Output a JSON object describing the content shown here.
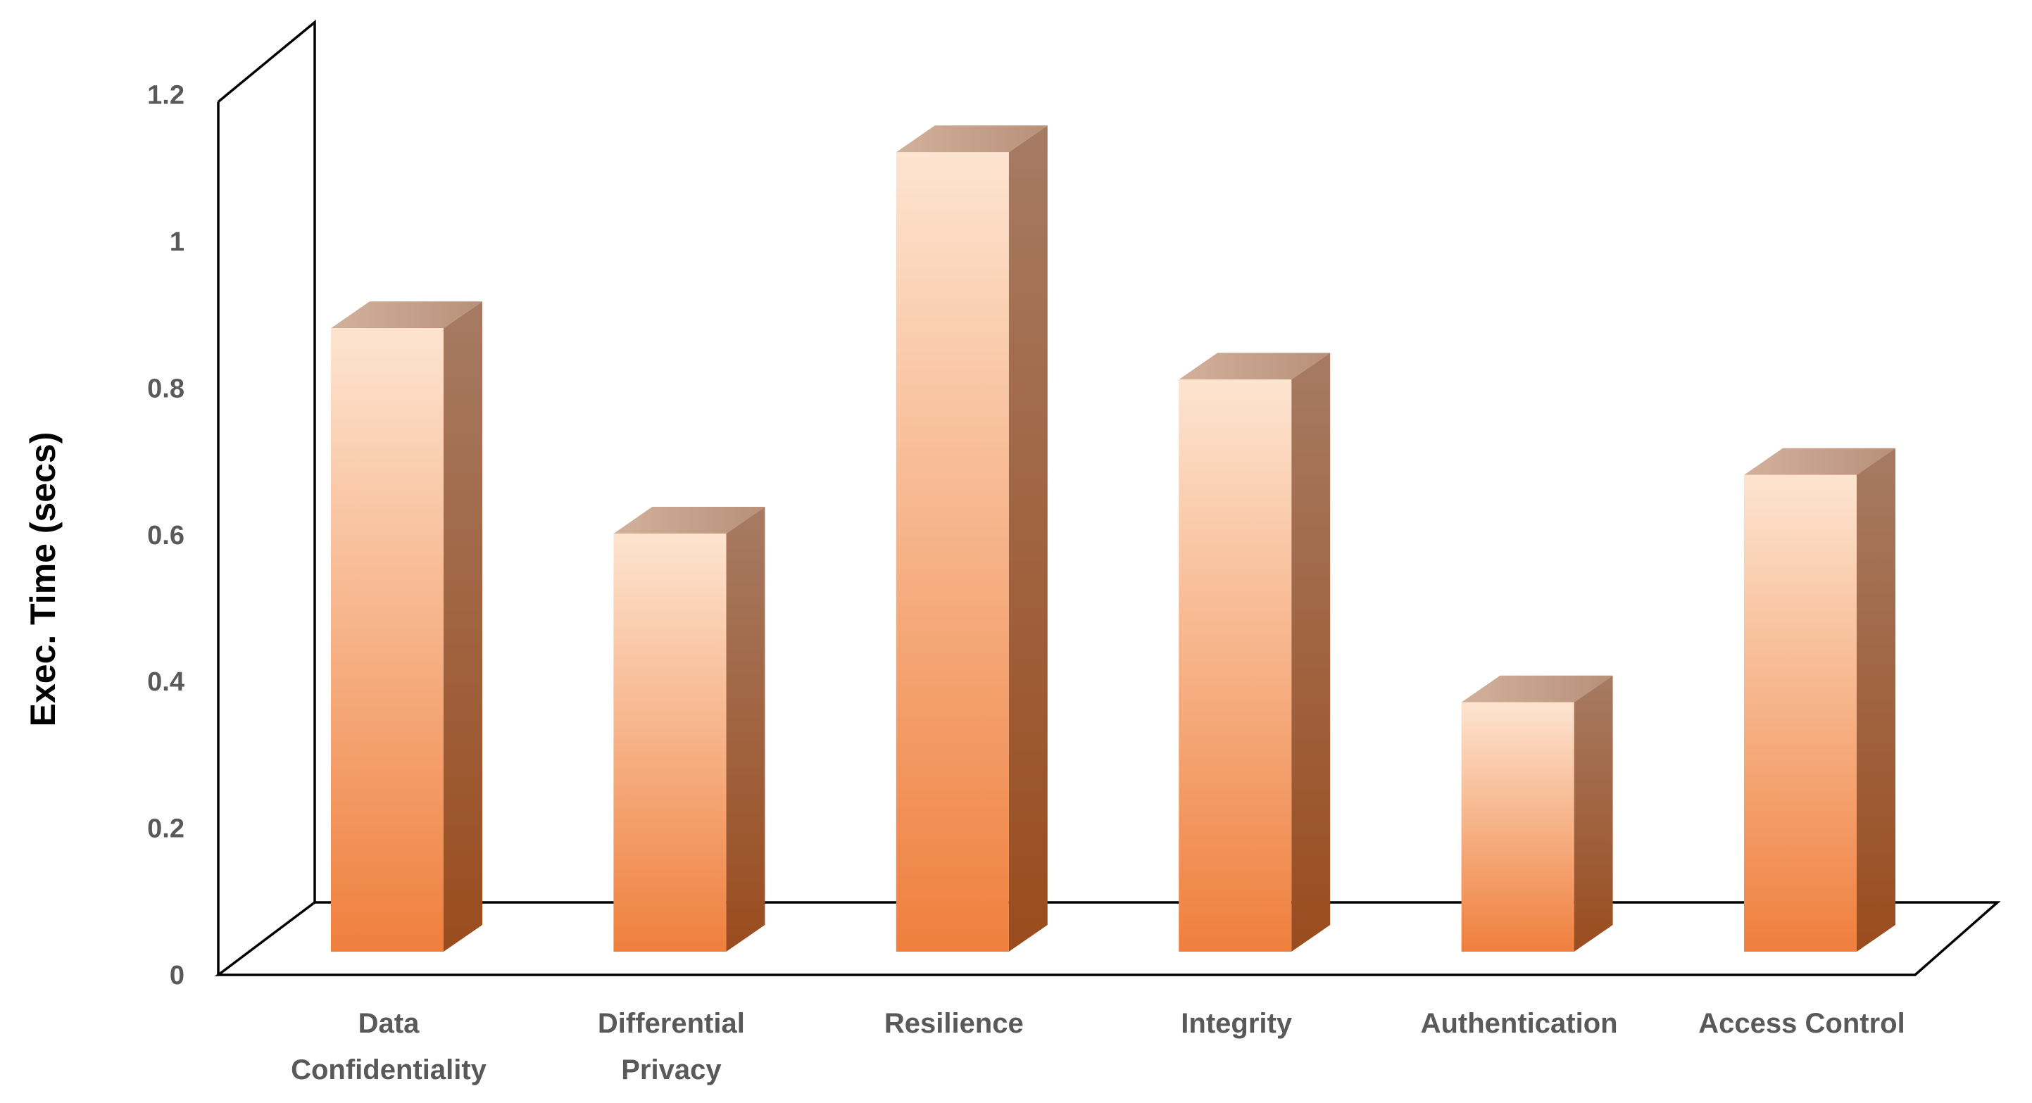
{
  "chart_data": {
    "type": "bar",
    "style": "3d-column",
    "categories": [
      [
        "Data",
        "Confidentiality"
      ],
      [
        "Differential",
        "Privacy"
      ],
      [
        "Resilience"
      ],
      [
        "Integrity"
      ],
      [
        "Authentication"
      ],
      [
        "Access Control"
      ]
    ],
    "values": [
      0.85,
      0.57,
      1.09,
      0.78,
      0.34,
      0.65
    ],
    "title": "",
    "xlabel": "",
    "ylabel": "Exec. Time (secs)",
    "ylim": [
      0,
      1.2
    ],
    "yticks": [
      "0",
      "0.2",
      "0.4",
      "0.6",
      "0.8",
      "1",
      "1.2"
    ],
    "grid": false,
    "legend": "none",
    "colors": {
      "bar_front_light": "#fde4d0",
      "bar_front_dark": "#ef7f3d",
      "bar_side_top": "#a67b63",
      "bar_side_bottom": "#9a4c1e",
      "bar_top": "#c7a592",
      "frame": "#000000",
      "tick_text": "#595959"
    }
  }
}
